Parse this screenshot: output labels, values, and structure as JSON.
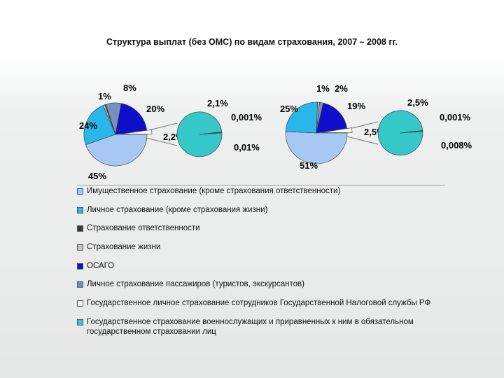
{
  "title": "Структура выплат (без ОМС) по видам страхования, 2007 – 2008 гг.",
  "colors": {
    "property": "#a8c8f4",
    "personal": "#29b6e8",
    "liability": "#3a3a3a",
    "life": "#c4c4c4",
    "osago": "#1010cc",
    "passengers": "#7890b8",
    "tax_service": "#ffffff",
    "military": "#36c8c8"
  },
  "chart_data": [
    {
      "type": "pie",
      "period": "2007",
      "main_pie": {
        "slices": [
          {
            "key": "property",
            "value": 45,
            "label": "45%"
          },
          {
            "key": "personal",
            "value": 24,
            "label": "24%"
          },
          {
            "key": "life",
            "value": 1,
            "label": "1%"
          },
          {
            "key": "liability",
            "value": 0.5,
            "label": ""
          },
          {
            "key": "passengers",
            "value": 8,
            "label": "8%"
          },
          {
            "key": "osago",
            "value": 20,
            "label": "20%"
          },
          {
            "key": "other",
            "value": 2.2,
            "label": "2,2%"
          }
        ]
      },
      "secondary_pie": {
        "slices": [
          {
            "key": "military",
            "value": 2.1,
            "label": "2,1%"
          },
          {
            "key": "passengers",
            "value": 0.001,
            "label": "0,001%"
          },
          {
            "key": "tax_service",
            "value": 0.01,
            "label": "0,01%"
          }
        ]
      }
    },
    {
      "type": "pie",
      "period": "2008",
      "main_pie": {
        "slices": [
          {
            "key": "property",
            "value": 51,
            "label": "51%"
          },
          {
            "key": "personal",
            "value": 25,
            "label": "25%"
          },
          {
            "key": "life",
            "value": 1,
            "label": "1%"
          },
          {
            "key": "passengers",
            "value": 2,
            "label": "2%"
          },
          {
            "key": "osago",
            "value": 19,
            "label": "19%"
          },
          {
            "key": "other",
            "value": 2.5,
            "label": "2,5%"
          }
        ]
      },
      "secondary_pie": {
        "slices": [
          {
            "key": "military",
            "value": 2.5,
            "label": "2,5%"
          },
          {
            "key": "passengers",
            "value": 0.001,
            "label": "0,001%"
          },
          {
            "key": "tax_service",
            "value": 0.008,
            "label": "0,008%"
          }
        ]
      }
    }
  ],
  "legend": [
    {
      "key": "property",
      "label": "Имущественное страхование (кроме страхования ответственности)"
    },
    {
      "key": "personal",
      "label": "Личное страхование (кроме страхования жизни)"
    },
    {
      "key": "liability",
      "label": "Страхование ответственности"
    },
    {
      "key": "life",
      "label": "Страхование жизни"
    },
    {
      "key": "osago",
      "label": "ОСАГО"
    },
    {
      "key": "passengers",
      "label": "Личное страхование пассажиров (туристов, экскурсантов)"
    },
    {
      "key": "tax_service",
      "label": "Государственное личное страхование сотрудников Государственной Налоговой службы РФ"
    },
    {
      "key": "military",
      "label": "Государственное страхование военнослужащих и приравненных к ним в обязательном государственном страховании лиц"
    }
  ]
}
